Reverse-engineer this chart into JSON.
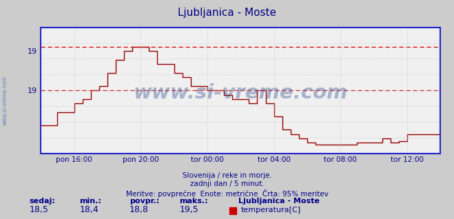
{
  "title": "Ljubljanica - Moste",
  "title_color": "#000080",
  "bg_color": "#cccccc",
  "plot_bg_color": "#f0f0f0",
  "line_color": "#990000",
  "axis_color": "#2222cc",
  "grid_color_major": "#bbbbbb",
  "grid_color_minor": "#dddddd",
  "dashed_line_color": "#dd0000",
  "x_tick_labels": [
    "pon 16:00",
    "pon 20:00",
    "tor 00:00",
    "tor 04:00",
    "tor 08:00",
    "tor 12:00"
  ],
  "x_tick_positions": [
    2,
    6,
    10,
    14,
    18,
    22
  ],
  "ytick_upper_label": "19",
  "ytick_upper_val": 19.45,
  "ytick_lower_label": "19",
  "ytick_lower_val": 19.0,
  "ymin": 18.28,
  "ymax": 19.72,
  "dashed_y_upper": 19.5,
  "dashed_y_lower": 19.0,
  "watermark": "www.si-vreme.com",
  "watermark_color": "#1e3f88",
  "watermark_alpha": 0.35,
  "sub1": "Slovenija / reke in morje.",
  "sub2": "zadnji dan / 5 minut.",
  "sub3": "Meritve: povprečne  Enote: metrične  Črta: 95% meritev",
  "footer_color": "#000088",
  "label_sedaj": "sedaj:",
  "label_min": "min.:",
  "label_povpr": "povpr.:",
  "label_maks": "maks.:",
  "val_sedaj": "18,5",
  "val_min": "18,4",
  "val_povpr": "18,8",
  "val_maks": "19,5",
  "legend_title": "Ljubljanica - Moste",
  "legend_item": "temperatura[C]",
  "legend_color": "#cc0000",
  "sidewatermark": "www.si-vreme.com",
  "sidewatermark_color": "#5577bb",
  "data_x": [
    0,
    0.5,
    1,
    1.5,
    2,
    2.5,
    3,
    3.5,
    4,
    4.5,
    5,
    5.5,
    6,
    6.5,
    7,
    7.5,
    8,
    8.5,
    9,
    9.5,
    10,
    10.5,
    11,
    11.5,
    12,
    12.5,
    13,
    13.5,
    14,
    14.5,
    15,
    15.5,
    16,
    16.5,
    17,
    17.5,
    18,
    18.5,
    19,
    19.5,
    20,
    20.5,
    21,
    21.5,
    22,
    22.5,
    23,
    23.5,
    24
  ],
  "data_y": [
    18.6,
    18.6,
    18.75,
    18.75,
    18.85,
    18.9,
    19.0,
    19.05,
    19.2,
    19.35,
    19.45,
    19.5,
    19.5,
    19.45,
    19.3,
    19.3,
    19.2,
    19.15,
    19.05,
    19.05,
    19.0,
    19.0,
    18.95,
    18.9,
    18.9,
    18.85,
    19.0,
    18.85,
    18.7,
    18.55,
    18.5,
    18.45,
    18.4,
    18.38,
    18.38,
    18.38,
    18.38,
    18.38,
    18.4,
    18.4,
    18.4,
    18.45,
    18.4,
    18.42,
    18.5,
    18.5,
    18.5,
    18.5,
    18.5
  ]
}
